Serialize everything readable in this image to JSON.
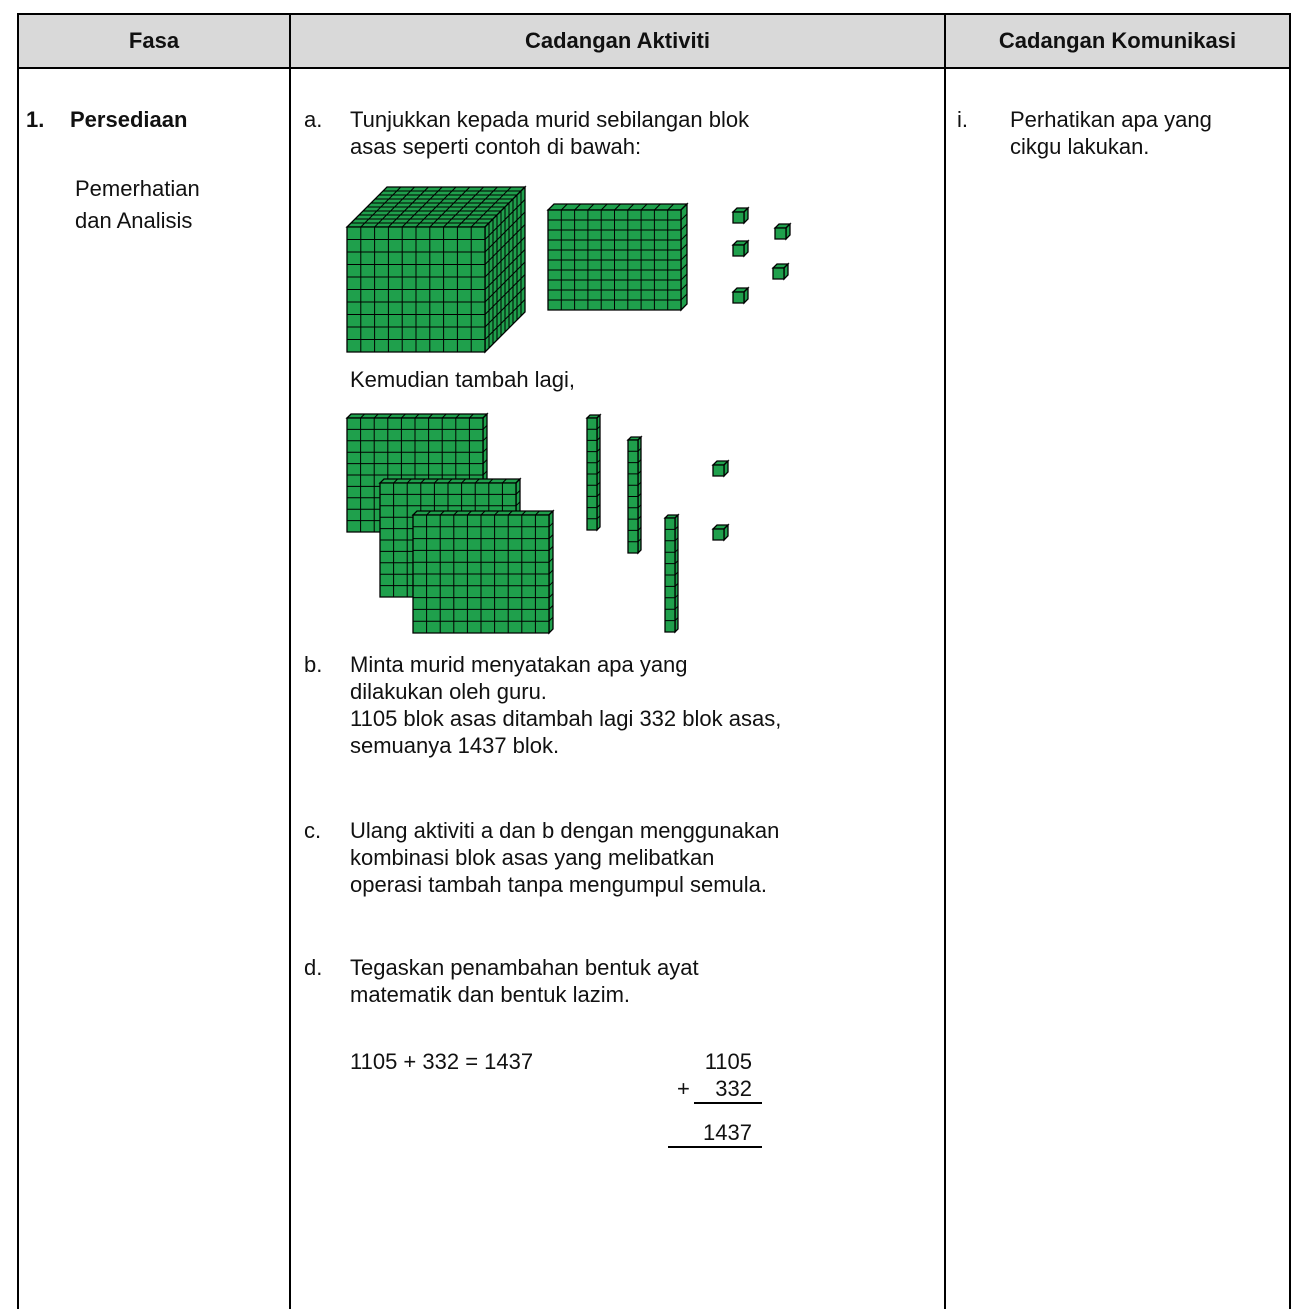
{
  "header": {
    "columns": [
      "Fasa",
      "Cadangan Aktiviti",
      "Cadangan Komunikasi"
    ]
  },
  "phase": {
    "number": "1.",
    "title": "Persediaan",
    "subtitle": [
      "Pemerhatian",
      "dan Analisis"
    ]
  },
  "activities": {
    "a": {
      "marker": "a.",
      "lines": [
        "Tunjukkan kepada murid sebilangan blok",
        "asas seperti contoh di bawah:"
      ],
      "then": "Kemudian tambah lagi,"
    },
    "b": {
      "marker": "b.",
      "lines": [
        "Minta murid menyatakan apa yang",
        "dilakukan oleh guru.",
        "1105 blok asas ditambah lagi 332 blok asas,",
        "semuanya 1437 blok."
      ]
    },
    "c": {
      "marker": "c.",
      "lines": [
        "Ulang aktiviti a dan b dengan menggunakan",
        "kombinasi blok asas yang melibatkan",
        "operasi tambah tanpa mengumpul semula."
      ]
    },
    "d": {
      "marker": "d.",
      "lines": [
        "Tegaskan penambahan bentuk ayat",
        "matematik dan bentuk lazim."
      ],
      "equation": "1105 + 332 = 1437",
      "column": {
        "top": "1105",
        "sign": "+",
        "second": "332",
        "result": "1437"
      }
    }
  },
  "communication": {
    "marker": "i.",
    "lines": [
      "Perhatikan apa yang",
      "cikgu lakukan."
    ]
  }
}
